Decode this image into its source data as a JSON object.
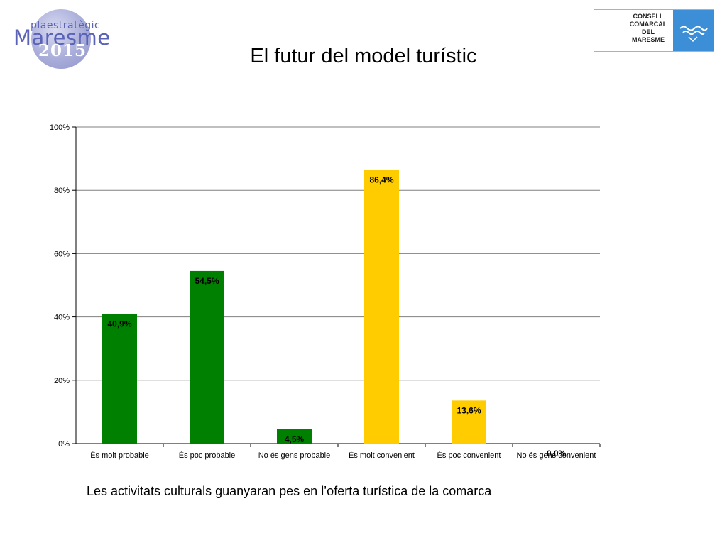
{
  "header": {
    "title": "El futur del model turístic",
    "logo_left": {
      "line1": "plaestratègic",
      "line2": "Maresme",
      "line3": "2015"
    },
    "logo_right": {
      "lines": [
        "CONSELL",
        "COMARCAL",
        "DEL",
        "MARESME"
      ]
    }
  },
  "caption": "Les activitats culturals guanyaran pes en l’oferta turística de la comarca",
  "colors": {
    "green": "#008000",
    "yellow": "#FFCC00",
    "grid": "#808080",
    "brand_blue": "#3c8fd6"
  },
  "chart_data": {
    "type": "bar",
    "categories": [
      "És molt probable",
      "És poc probable",
      "No és gens probable",
      "És molt convenient",
      "És poc convenient",
      "No és gens convenient"
    ],
    "values": [
      40.9,
      54.5,
      4.5,
      86.4,
      13.6,
      0.0
    ],
    "value_labels": [
      "40,9%",
      "54,5%",
      "4,5%",
      "86,4%",
      "13,6%",
      "0,0%"
    ],
    "bar_colors": [
      "#008000",
      "#008000",
      "#008000",
      "#FFCC00",
      "#FFCC00",
      "#FFCC00"
    ],
    "yticks": [
      "0%",
      "20%",
      "40%",
      "60%",
      "80%",
      "100%"
    ],
    "ylim": [
      0,
      100
    ],
    "grid": true,
    "legend": "none"
  }
}
